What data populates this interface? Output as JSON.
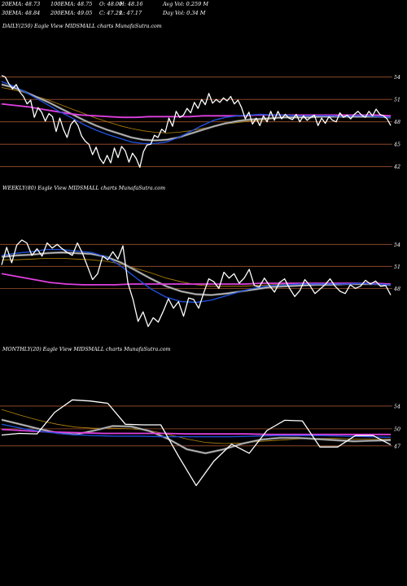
{
  "header": {
    "row1": [
      "20EMA: 48.73",
      "100EMA: 48.75",
      "O: 48.00",
      "H: 48.16",
      "Avg Vol: 0.259 M"
    ],
    "row2": [
      "30EMA: 48.84",
      "200EMA: 49.05",
      "C: 47.29",
      "L: 47.17",
      "Day Vol: 0.34  M"
    ]
  },
  "colors": {
    "background": "#000000",
    "price": "#ffffff",
    "ema_fast": "#1f4fd8",
    "ema_long": "#e040e0",
    "ema_mid": "#b8860b",
    "ema_light": "#d8d8d8",
    "level_line": "#a0522d"
  },
  "chart_data": [
    {
      "type": "line",
      "title": "DAILY(250) Eagle  View  MIDSMALL  charts MunafaSutra.com",
      "levels": [
        54,
        51,
        48,
        45,
        42
      ],
      "ylim": [
        41.2,
        55.6
      ],
      "series": [
        {
          "role": "price",
          "values": [
            54.2,
            54.0,
            53.1,
            52.4,
            53.0,
            52.0,
            51.4,
            50.4,
            50.9,
            48.6,
            49.9,
            49.3,
            48.1,
            49.1,
            48.7,
            46.7,
            48.5,
            47.0,
            45.9,
            47.6,
            48.2,
            47.5,
            46.1,
            45.4,
            45.0,
            43.6,
            44.6,
            43.1,
            42.4,
            43.5,
            42.5,
            44.5,
            43.2,
            44.7,
            44.1,
            42.6,
            43.8,
            43.1,
            41.9,
            44.0,
            44.9,
            45.0,
            46.2,
            45.9,
            47.0,
            46.6,
            48.5,
            47.4,
            49.4,
            48.6,
            48.9,
            49.8,
            49.2,
            50.6,
            49.8,
            51.0,
            50.3,
            51.8,
            50.5,
            51.0,
            50.6,
            51.2,
            50.8,
            51.4,
            50.4,
            50.9,
            49.9,
            48.4,
            49.3,
            47.7,
            48.5,
            47.5,
            48.8,
            48.0,
            49.4,
            48.2,
            49.4,
            48.4,
            49.0,
            48.5,
            48.3,
            49.0,
            48.0,
            48.8,
            48.2,
            48.6,
            48.9,
            47.5,
            48.5,
            47.8,
            48.7,
            48.2,
            48.0,
            49.2,
            48.6,
            48.9,
            48.4,
            49.0,
            49.4,
            48.9,
            48.6,
            49.4,
            48.8,
            49.7,
            49.0,
            48.8,
            48.4,
            47.5
          ]
        },
        {
          "role": "ema_fast",
          "values": [
            53.4,
            52.8,
            52.0,
            51.1,
            50.2,
            49.3,
            48.5,
            47.6,
            46.9,
            46.3,
            45.8,
            45.3,
            45.1,
            45.1,
            45.3,
            45.9,
            46.7,
            47.5,
            48.2,
            48.6,
            48.8,
            48.9,
            49.0,
            48.9,
            48.9,
            48.8,
            48.8,
            48.8,
            48.8,
            48.7,
            48.8,
            48.8,
            48.7,
            48.6
          ]
        },
        {
          "role": "ema_light",
          "values": [
            53.0,
            52.6,
            52.0,
            51.3,
            50.6,
            49.8,
            49.0,
            48.2,
            47.5,
            46.9,
            46.4,
            45.9,
            45.6,
            45.5,
            45.6,
            45.9,
            46.4,
            46.9,
            47.4,
            47.8,
            48.1,
            48.3,
            48.4,
            48.5,
            48.6,
            48.6,
            48.6,
            48.7,
            48.7,
            48.7,
            48.7,
            48.7,
            48.7,
            48.6
          ]
        },
        {
          "role": "ema_mid",
          "values": [
            52.6,
            52.3,
            51.9,
            51.4,
            50.9,
            50.3,
            49.7,
            49.1,
            48.5,
            48.0,
            47.5,
            47.1,
            46.8,
            46.6,
            46.5,
            46.6,
            46.8,
            47.1,
            47.4,
            47.7,
            47.9,
            48.1,
            48.2,
            48.4,
            48.5,
            48.5,
            48.6,
            48.6,
            48.7,
            48.7,
            48.7,
            48.7,
            48.7,
            48.7
          ]
        },
        {
          "role": "ema_long",
          "values": [
            50.4,
            50.2,
            50.0,
            49.7,
            49.4,
            49.1,
            48.9,
            48.8,
            48.7,
            48.6,
            48.6,
            48.7,
            48.7,
            48.7,
            48.7,
            48.8,
            48.8,
            48.8,
            48.8,
            48.9,
            48.9,
            48.9,
            48.9,
            48.9,
            48.9,
            48.9,
            48.9,
            48.9,
            48.9,
            48.8
          ]
        }
      ]
    },
    {
      "type": "line",
      "title": "WEEKLY(80) Eagle  View  MIDSMALL  charts MunafaSutra.com",
      "levels": [
        54,
        51,
        48
      ],
      "ylim": [
        41.6,
        55.7
      ],
      "series": [
        {
          "role": "price",
          "values": [
            51.2,
            53.6,
            51.5,
            53.9,
            54.6,
            54.2,
            52.5,
            53.4,
            52.4,
            54.2,
            53.5,
            54.0,
            53.4,
            52.9,
            52.5,
            54.2,
            52.8,
            51.0,
            49.2,
            50.0,
            52.4,
            51.9,
            53.0,
            52.0,
            53.8,
            48.7,
            46.5,
            43.5,
            44.8,
            42.8,
            44.0,
            43.4,
            44.9,
            46.6,
            45.3,
            46.2,
            44.2,
            46.7,
            46.5,
            45.3,
            47.4,
            49.3,
            48.9,
            48.0,
            50.2,
            49.4,
            50.0,
            48.7,
            49.4,
            50.6,
            48.4,
            48.2,
            49.4,
            48.4,
            47.5,
            48.8,
            49.3,
            48.0,
            46.9,
            47.7,
            49.2,
            48.4,
            47.3,
            47.9,
            48.5,
            49.3,
            48.3,
            47.6,
            47.3,
            48.5,
            48.0,
            48.3,
            49.1,
            48.6,
            49.0,
            48.3,
            48.4,
            47.1
          ]
        },
        {
          "role": "ema_fast",
          "values": [
            52.5,
            52.8,
            53.0,
            53.3,
            53.3,
            53.1,
            52.9,
            52.3,
            51.0,
            49.4,
            47.9,
            46.8,
            46.2,
            46.1,
            46.4,
            47.0,
            47.6,
            48.1,
            48.4,
            48.5,
            48.6,
            48.6,
            48.6,
            48.6,
            48.7,
            48.6,
            48.5
          ]
        },
        {
          "role": "ema_light",
          "values": [
            52.3,
            52.5,
            52.6,
            52.8,
            52.9,
            52.8,
            52.7,
            52.3,
            51.5,
            50.4,
            49.3,
            48.3,
            47.6,
            47.2,
            47.1,
            47.3,
            47.6,
            47.9,
            48.2,
            48.3,
            48.4,
            48.5,
            48.5,
            48.6,
            48.6,
            48.6,
            48.5
          ]
        },
        {
          "role": "ema_mid",
          "values": [
            51.9,
            51.9,
            52.0,
            52.1,
            52.1,
            52.0,
            51.9,
            51.7,
            51.3,
            50.7,
            50.1,
            49.4,
            48.9,
            48.5,
            48.3,
            48.3,
            48.3,
            48.4,
            48.5,
            48.6,
            48.6,
            48.7,
            48.7,
            48.7,
            48.7,
            48.7,
            48.6
          ]
        },
        {
          "role": "ema_long",
          "values": [
            50.0,
            49.6,
            49.2,
            48.8,
            48.6,
            48.5,
            48.5,
            48.5,
            48.6,
            48.6,
            48.6,
            48.6,
            48.6,
            48.6,
            48.6,
            48.6,
            48.7,
            48.7,
            48.7,
            48.7,
            48.7,
            48.7,
            48.7,
            48.7,
            48.6
          ]
        }
      ]
    },
    {
      "type": "line",
      "title": "MONTHLY(20) Eagle  View  MIDSMALL  charts MunafaSutra.com",
      "levels": [
        54,
        50,
        47
      ],
      "ylim": [
        37.8,
        56.0
      ],
      "series": [
        {
          "role": "price",
          "values": [
            48.9,
            49.2,
            49.1,
            52.9,
            55.1,
            54.9,
            54.5,
            50.8,
            50.7,
            50.7,
            45.2,
            40.0,
            44.3,
            47.3,
            45.7,
            49.7,
            51.5,
            51.4,
            46.8,
            46.8,
            48.8,
            48.8,
            47.2
          ]
        },
        {
          "role": "ema_fast",
          "values": [
            50.8,
            50.0,
            49.4,
            49.0,
            48.8,
            48.7,
            48.7,
            48.6,
            48.6,
            48.6,
            48.6,
            48.7,
            48.8,
            48.8,
            48.8,
            48.7,
            48.6,
            48.5
          ]
        },
        {
          "role": "ema_light",
          "values": [
            51.6,
            50.8,
            50.0,
            49.3,
            49.0,
            49.7,
            50.5,
            50.4,
            49.6,
            48.2,
            46.4,
            45.7,
            46.4,
            47.4,
            48.1,
            48.4,
            48.4,
            48.2,
            48.0,
            47.8,
            47.9,
            48.0
          ]
        },
        {
          "role": "ema_mid",
          "values": [
            53.4,
            52.4,
            51.5,
            50.8,
            50.3,
            50.1,
            50.1,
            50.0,
            49.7,
            49.0,
            48.2,
            47.6,
            47.4,
            47.5,
            47.8,
            48.0,
            48.2,
            48.3,
            48.3,
            48.2,
            48.2,
            48.2
          ]
        },
        {
          "role": "ema_long",
          "values": [
            49.9,
            49.7,
            49.5,
            49.4,
            49.3,
            49.2,
            49.2,
            49.2,
            49.2,
            49.1,
            49.1,
            49.1,
            49.1,
            49.0,
            49.0,
            49.0,
            49.0,
            49.0,
            49.0,
            49.0
          ]
        }
      ]
    }
  ]
}
